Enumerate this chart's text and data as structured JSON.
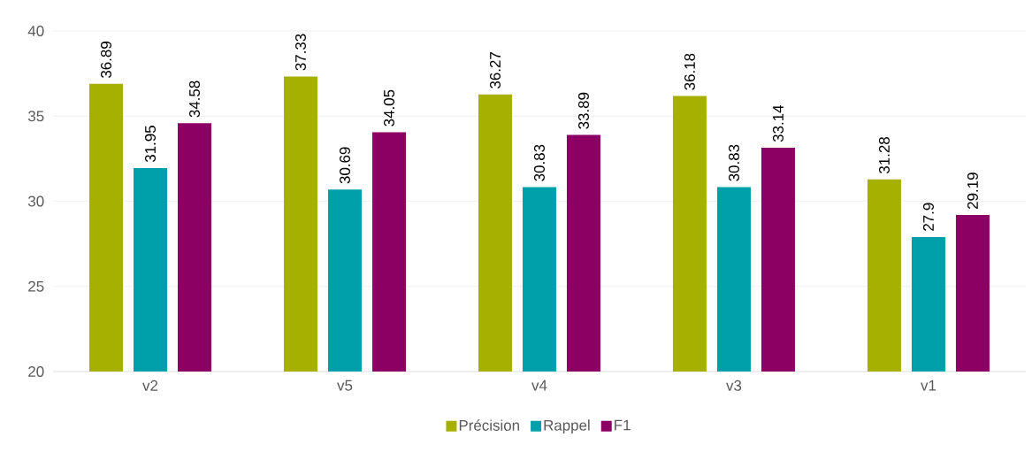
{
  "chart_data": {
    "type": "bar",
    "categories": [
      "v2",
      "v5",
      "v4",
      "v3",
      "v1"
    ],
    "series": [
      {
        "name": "Précision",
        "color": "#a5b000",
        "values": [
          36.89,
          37.33,
          36.27,
          36.18,
          31.28
        ]
      },
      {
        "name": "Rappel",
        "color": "#00a0aa",
        "values": [
          31.95,
          30.69,
          30.83,
          30.83,
          27.9
        ]
      },
      {
        "name": "F1",
        "color": "#8c0064",
        "values": [
          34.58,
          34.05,
          33.89,
          33.14,
          29.19
        ]
      }
    ],
    "ylim": [
      20,
      40
    ],
    "yticks": [
      20,
      25,
      30,
      35,
      40
    ],
    "grid": "y",
    "legend": "bottom",
    "data_labels": true
  }
}
